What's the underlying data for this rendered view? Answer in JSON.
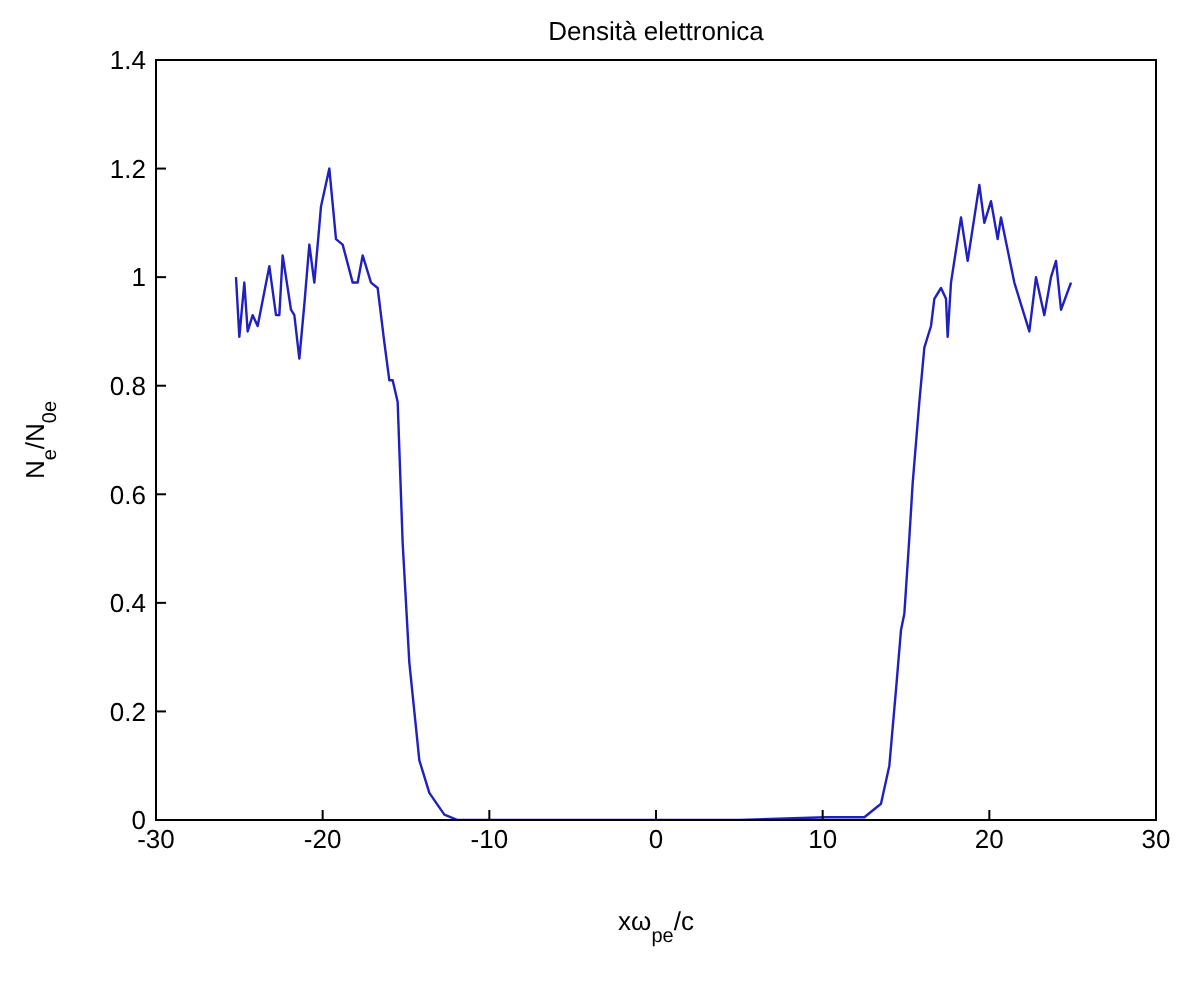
{
  "chart_data": {
    "type": "line",
    "title": "Densità elettronica",
    "xlabel": "xω$_{pe}$/c",
    "ylabel": "N$_{e}$/N$_{0e}$",
    "xlim": [
      -30,
      30
    ],
    "xticks": [
      -30,
      -20,
      -10,
      0,
      10,
      20,
      30
    ],
    "ylim": [
      0,
      1.4
    ],
    "yticks": [
      0,
      0.2,
      0.4,
      0.6,
      0.8,
      1,
      1.2,
      1.4
    ],
    "grid": false,
    "legend": false,
    "marker": "none",
    "line_style": "solid",
    "series": [
      {
        "color": "#2020c0",
        "x": [
          -25.2,
          -25.0,
          -24.7,
          -24.5,
          -24.2,
          -23.9,
          -23.2,
          -22.8,
          -22.6,
          -22.4,
          -21.9,
          -21.7,
          -21.4,
          -21.1,
          -20.8,
          -20.5,
          -20.1,
          -19.6,
          -19.2,
          -18.8,
          -18.2,
          -17.9,
          -17.6,
          -17.1,
          -16.7,
          -16.3,
          -16.0,
          -15.8,
          -15.5,
          -15.2,
          -14.8,
          -14.2,
          -13.6,
          -12.7,
          -11.9,
          -10,
          -5,
          0,
          5,
          10.2,
          12.5,
          13.5,
          14.0,
          14.4,
          14.7,
          14.9,
          15.2,
          15.4,
          15.8,
          16.1,
          16.5,
          16.7,
          17.1,
          17.4,
          17.5,
          17.7,
          18.1,
          18.3,
          18.7,
          19.1,
          19.4,
          19.7,
          20.1,
          20.5,
          20.7,
          21.1,
          21.5,
          21.9,
          22.1,
          22.4,
          22.8,
          23.3,
          23.7,
          24.0,
          24.3,
          24.9
        ],
        "values": [
          1.0,
          0.89,
          0.99,
          0.9,
          0.93,
          0.91,
          1.02,
          0.93,
          0.93,
          1.04,
          0.94,
          0.93,
          0.85,
          0.95,
          1.06,
          0.99,
          1.13,
          1.2,
          1.07,
          1.06,
          0.99,
          0.99,
          1.04,
          0.99,
          0.98,
          0.88,
          0.81,
          0.81,
          0.77,
          0.51,
          0.29,
          0.11,
          0.05,
          0.01,
          0.0,
          0.0,
          0.0,
          0.0,
          0.0,
          0.005,
          0.005,
          0.03,
          0.1,
          0.24,
          0.35,
          0.38,
          0.52,
          0.62,
          0.77,
          0.87,
          0.91,
          0.96,
          0.98,
          0.96,
          0.89,
          0.99,
          1.07,
          1.11,
          1.03,
          1.11,
          1.17,
          1.1,
          1.14,
          1.07,
          1.11,
          1.05,
          0.99,
          0.95,
          0.93,
          0.9,
          1.0,
          0.93,
          1.0,
          1.03,
          0.94,
          0.99
        ]
      }
    ]
  }
}
